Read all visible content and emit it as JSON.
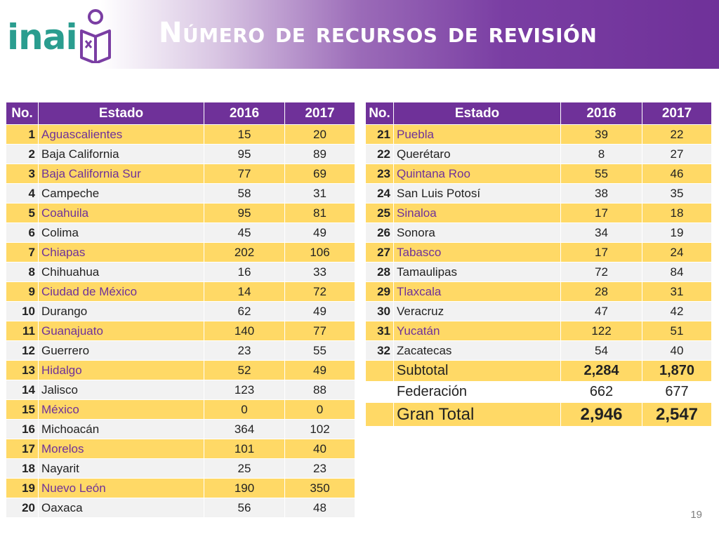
{
  "header": {
    "logo_text": "inai",
    "title": "Número de recursos de revisión"
  },
  "columns": {
    "no": "No.",
    "estado": "Estado",
    "y2016": "2016",
    "y2017": "2017"
  },
  "left_rows": [
    {
      "no": "1",
      "estado": "Aguascalientes",
      "v2016": "15",
      "v2017": "20"
    },
    {
      "no": "2",
      "estado": "Baja California",
      "v2016": "95",
      "v2017": "89"
    },
    {
      "no": "3",
      "estado": "Baja California Sur",
      "v2016": "77",
      "v2017": "69"
    },
    {
      "no": "4",
      "estado": "Campeche",
      "v2016": "58",
      "v2017": "31"
    },
    {
      "no": "5",
      "estado": "Coahuila",
      "v2016": "95",
      "v2017": "81"
    },
    {
      "no": "6",
      "estado": "Colima",
      "v2016": "45",
      "v2017": "49"
    },
    {
      "no": "7",
      "estado": "Chiapas",
      "v2016": "202",
      "v2017": "106"
    },
    {
      "no": "8",
      "estado": "Chihuahua",
      "v2016": "16",
      "v2017": "33"
    },
    {
      "no": "9",
      "estado": "Ciudad de México",
      "v2016": "14",
      "v2017": "72"
    },
    {
      "no": "10",
      "estado": "Durango",
      "v2016": "62",
      "v2017": "49"
    },
    {
      "no": "11",
      "estado": "Guanajuato",
      "v2016": "140",
      "v2017": "77"
    },
    {
      "no": "12",
      "estado": "Guerrero",
      "v2016": "23",
      "v2017": "55"
    },
    {
      "no": "13",
      "estado": "Hidalgo",
      "v2016": "52",
      "v2017": "49"
    },
    {
      "no": "14",
      "estado": "Jalisco",
      "v2016": "123",
      "v2017": "88"
    },
    {
      "no": "15",
      "estado": "México",
      "v2016": "0",
      "v2017": "0"
    },
    {
      "no": "16",
      "estado": "Michoacán",
      "v2016": "364",
      "v2017": "102"
    },
    {
      "no": "17",
      "estado": "Morelos",
      "v2016": "101",
      "v2017": "40"
    },
    {
      "no": "18",
      "estado": "Nayarit",
      "v2016": "25",
      "v2017": "23"
    },
    {
      "no": "19",
      "estado": "Nuevo León",
      "v2016": "190",
      "v2017": "350"
    },
    {
      "no": "20",
      "estado": "Oaxaca",
      "v2016": "56",
      "v2017": "48"
    }
  ],
  "right_rows": [
    {
      "no": "21",
      "estado": "Puebla",
      "v2016": "39",
      "v2017": "22"
    },
    {
      "no": "22",
      "estado": "Querétaro",
      "v2016": "8",
      "v2017": "27"
    },
    {
      "no": "23",
      "estado": "Quintana Roo",
      "v2016": "55",
      "v2017": "46"
    },
    {
      "no": "24",
      "estado": "San Luis Potosí",
      "v2016": "38",
      "v2017": "35"
    },
    {
      "no": "25",
      "estado": "Sinaloa",
      "v2016": "17",
      "v2017": "18"
    },
    {
      "no": "26",
      "estado": "Sonora",
      "v2016": "34",
      "v2017": "19"
    },
    {
      "no": "27",
      "estado": "Tabasco",
      "v2016": "17",
      "v2017": "24"
    },
    {
      "no": "28",
      "estado": "Tamaulipas",
      "v2016": "72",
      "v2017": "84"
    },
    {
      "no": "29",
      "estado": "Tlaxcala",
      "v2016": "28",
      "v2017": "31"
    },
    {
      "no": "30",
      "estado": "Veracruz",
      "v2016": "47",
      "v2017": "42"
    },
    {
      "no": "31",
      "estado": "Yucatán",
      "v2016": "122",
      "v2017": "51"
    },
    {
      "no": "32",
      "estado": "Zacatecas",
      "v2016": "54",
      "v2017": "40"
    }
  ],
  "totals": {
    "subtotal": {
      "label": "Subtotal",
      "v2016": "2,284",
      "v2017": "1,870"
    },
    "federacion": {
      "label": "Federación",
      "v2016": "662",
      "v2017": "677"
    },
    "gran_total": {
      "label": "Gran Total",
      "v2016": "2,946",
      "v2017": "2,547"
    }
  },
  "page_number": "19",
  "colors": {
    "purple": "#6f3199",
    "yellow": "#ffd966",
    "gray": "#f2f2f2",
    "teal": "#2a9d8f"
  }
}
